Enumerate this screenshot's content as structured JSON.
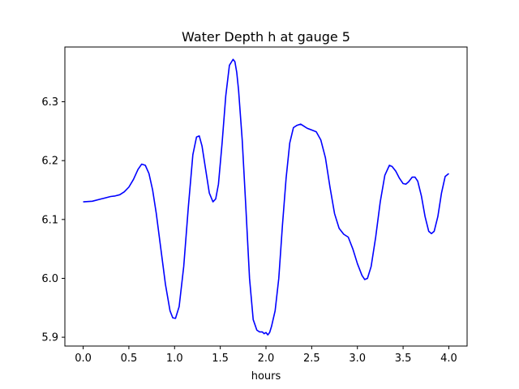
{
  "chart_data": {
    "type": "line",
    "title": "Water Depth h at gauge 5",
    "xlabel": "hours",
    "ylabel": "",
    "xlim": [
      -0.2,
      4.2
    ],
    "ylim": [
      5.885,
      6.393
    ],
    "xticks": [
      0.0,
      0.5,
      1.0,
      1.5,
      2.0,
      2.5,
      3.0,
      3.5,
      4.0
    ],
    "xtick_labels": [
      "0.0",
      "0.5",
      "1.0",
      "1.5",
      "2.0",
      "2.5",
      "3.0",
      "3.5",
      "4.0"
    ],
    "yticks": [
      5.9,
      6.0,
      6.1,
      6.2,
      6.3
    ],
    "ytick_labels": [
      "5.9",
      "6.0",
      "6.1",
      "6.2",
      "6.3"
    ],
    "grid": false,
    "legend": "none",
    "series": [
      {
        "color": "#0000ff",
        "x": [
          0.0,
          0.1,
          0.2,
          0.3,
          0.35,
          0.4,
          0.45,
          0.5,
          0.55,
          0.6,
          0.64,
          0.68,
          0.72,
          0.76,
          0.8,
          0.85,
          0.9,
          0.95,
          0.98,
          1.01,
          1.05,
          1.1,
          1.15,
          1.2,
          1.24,
          1.27,
          1.3,
          1.34,
          1.38,
          1.42,
          1.45,
          1.48,
          1.52,
          1.56,
          1.6,
          1.64,
          1.66,
          1.68,
          1.7,
          1.74,
          1.78,
          1.82,
          1.86,
          1.9,
          1.93,
          1.96,
          1.98,
          2.0,
          2.02,
          2.04,
          2.06,
          2.1,
          2.14,
          2.18,
          2.22,
          2.26,
          2.3,
          2.34,
          2.38,
          2.42,
          2.45,
          2.5,
          2.55,
          2.6,
          2.65,
          2.7,
          2.75,
          2.8,
          2.85,
          2.9,
          2.95,
          3.0,
          3.05,
          3.08,
          3.11,
          3.15,
          3.2,
          3.25,
          3.3,
          3.35,
          3.38,
          3.42,
          3.46,
          3.5,
          3.53,
          3.56,
          3.6,
          3.63,
          3.66,
          3.7,
          3.74,
          3.78,
          3.81,
          3.84,
          3.88,
          3.92,
          3.96,
          4.0
        ],
        "y": [
          6.13,
          6.131,
          6.135,
          6.139,
          6.14,
          6.142,
          6.147,
          6.155,
          6.168,
          6.185,
          6.194,
          6.192,
          6.178,
          6.15,
          6.11,
          6.05,
          5.99,
          5.945,
          5.933,
          5.932,
          5.952,
          6.02,
          6.12,
          6.21,
          6.24,
          6.242,
          6.225,
          6.185,
          6.145,
          6.13,
          6.135,
          6.16,
          6.23,
          6.31,
          6.362,
          6.372,
          6.368,
          6.35,
          6.32,
          6.235,
          6.12,
          6.0,
          5.93,
          5.912,
          5.909,
          5.909,
          5.906,
          5.908,
          5.904,
          5.908,
          5.918,
          5.945,
          6.0,
          6.09,
          6.17,
          6.23,
          6.256,
          6.26,
          6.262,
          6.258,
          6.255,
          6.252,
          6.249,
          6.235,
          6.205,
          6.155,
          6.11,
          6.085,
          6.075,
          6.07,
          6.05,
          6.025,
          6.005,
          5.998,
          6.0,
          6.02,
          6.07,
          6.13,
          6.175,
          6.192,
          6.19,
          6.182,
          6.17,
          6.161,
          6.16,
          6.164,
          6.172,
          6.172,
          6.165,
          6.14,
          6.105,
          6.08,
          6.076,
          6.08,
          6.105,
          6.145,
          6.173,
          6.178
        ]
      }
    ]
  }
}
